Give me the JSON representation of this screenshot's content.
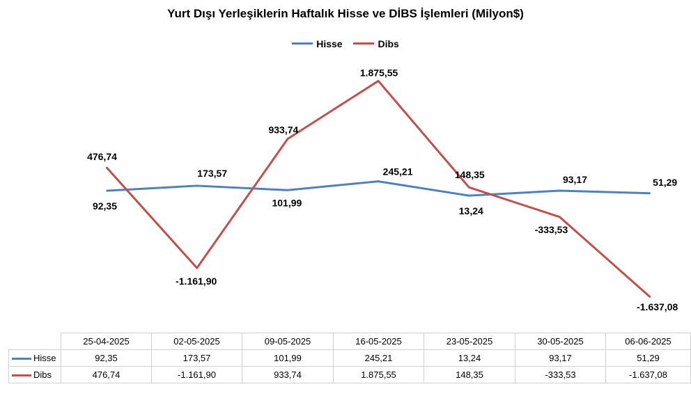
{
  "chart_data": {
    "type": "line",
    "title": "Yurt Dışı Yerleşiklerin Haftalık Hisse ve DİBS İşlemleri (Milyon$)",
    "categories": [
      "25-04-2025",
      "02-05-2025",
      "09-05-2025",
      "16-05-2025",
      "23-05-2025",
      "30-05-2025",
      "06-06-2025"
    ],
    "series": [
      {
        "name": "Hisse",
        "color": "#4f81bd",
        "values": [
          92.35,
          173.57,
          101.99,
          245.21,
          13.24,
          93.17,
          51.29
        ],
        "labels": [
          "92,35",
          "173,57",
          "101,99",
          "245,21",
          "13,24",
          "93,17",
          "51,29"
        ]
      },
      {
        "name": "Dibs",
        "color": "#c0504d",
        "values": [
          476.74,
          -1161.9,
          933.74,
          1875.55,
          148.35,
          -333.53,
          -1637.08
        ],
        "labels": [
          "476,74",
          "-1.161,90",
          "933,74",
          "1.875,55",
          "148,35",
          "-333,53",
          "-1.637,08"
        ]
      }
    ],
    "legend_position": "top",
    "grid": false,
    "data_table": true
  }
}
